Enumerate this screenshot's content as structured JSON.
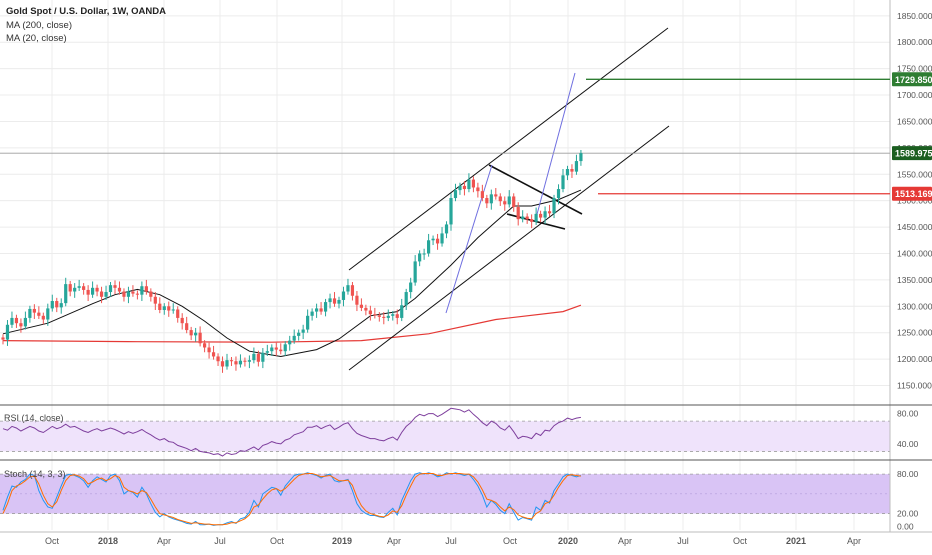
{
  "header": {
    "title": "Gold Spot / U.S. Dollar, 1W, OANDA",
    "ma200_label": "MA (200, close)",
    "ma20_label": "MA (20, close)",
    "rsi_label": "RSI (14, close)",
    "stoch_label": "Stoch (14, 3, 3)"
  },
  "colors": {
    "up": "#26a69a",
    "down": "#ef5350",
    "ma200": "#e53935",
    "ma20": "#111111",
    "trend": "#111111",
    "blue_line": "#6f6fe0",
    "target_line": "#2e7d32",
    "support_line": "#e53935",
    "rsi_line": "#7e3f9d",
    "rsi_band": "#efe3fb",
    "stoch_k": "#2196f3",
    "stoch_d": "#ff6d00",
    "stoch_band": "#d9c4f5",
    "grid": "#ececec"
  },
  "chart_data": [
    {
      "type": "candlestick",
      "title": "Gold Spot / U.S. Dollar, 1W, OANDA",
      "ylim": [
        1115,
        1880
      ],
      "y_ticks": [
        "1850.000",
        "1800.000",
        "1750.000",
        "1700.000",
        "1650.000",
        "1600.000",
        "1550.000",
        "1500.000",
        "1450.000",
        "1400.000",
        "1350.000",
        "1300.000",
        "1250.000",
        "1200.000",
        "1150.000"
      ],
      "x_ticks": [
        "Oct",
        "2018",
        "Apr",
        "Jul",
        "Oct",
        "2019",
        "Apr",
        "Jul",
        "Oct",
        "2020",
        "Apr",
        "Jul",
        "Oct",
        "2021",
        "Apr"
      ],
      "price_labels": [
        {
          "label": "1729.850",
          "value": 1729.85,
          "color": "#2e7d32"
        },
        {
          "label": "1589.975",
          "value": 1589.975,
          "color": "#1b5e20"
        },
        {
          "label": "1513.169",
          "value": 1513.169,
          "color": "#e53935"
        }
      ],
      "close": [
        1237,
        1265,
        1278,
        1268,
        1262,
        1278,
        1295,
        1288,
        1282,
        1275,
        1296,
        1310,
        1298,
        1306,
        1342,
        1328,
        1335,
        1338,
        1331,
        1322,
        1335,
        1328,
        1318,
        1327,
        1340,
        1335,
        1328,
        1318,
        1328,
        1324,
        1322,
        1338,
        1328,
        1318,
        1305,
        1293,
        1300,
        1292,
        1294,
        1278,
        1268,
        1255,
        1245,
        1250,
        1230,
        1222,
        1213,
        1205,
        1196,
        1186,
        1198,
        1196,
        1190,
        1197,
        1195,
        1198,
        1210,
        1195,
        1212,
        1215,
        1222,
        1218,
        1215,
        1228,
        1235,
        1244,
        1250,
        1256,
        1282,
        1290,
        1296,
        1290,
        1308,
        1315,
        1305,
        1312,
        1328,
        1340,
        1320,
        1303,
        1297,
        1292,
        1285,
        1283,
        1280,
        1278,
        1282,
        1285,
        1278,
        1302,
        1327,
        1345,
        1385,
        1400,
        1400,
        1425,
        1428,
        1419,
        1438,
        1455,
        1505,
        1520,
        1528,
        1522,
        1540,
        1525,
        1518,
        1505,
        1495,
        1512,
        1508,
        1499,
        1493,
        1508,
        1488,
        1465,
        1470,
        1465,
        1460,
        1475,
        1468,
        1480,
        1476,
        1505,
        1522,
        1548,
        1560,
        1555,
        1575,
        1590
      ],
      "ohlc_note": "Weekly candles; open of each candle equals the previous close.",
      "series": [
        {
          "name": "MA (200, close)",
          "points": [
            [
              0,
              1235
            ],
            [
              30,
              1233
            ],
            [
              60,
              1232
            ],
            [
              80,
              1235
            ],
            [
              95,
              1248
            ],
            [
              110,
              1275
            ],
            [
              125,
              1290
            ],
            [
              129,
              1302
            ]
          ]
        },
        {
          "name": "MA (20, close)",
          "points": [
            [
              0,
              1248
            ],
            [
              10,
              1268
            ],
            [
              20,
              1305
            ],
            [
              25,
              1322
            ],
            [
              30,
              1332
            ],
            [
              35,
              1322
            ],
            [
              40,
              1300
            ],
            [
              45,
              1272
            ],
            [
              50,
              1240
            ],
            [
              55,
              1215
            ],
            [
              62,
              1205
            ],
            [
              70,
              1218
            ],
            [
              75,
              1238
            ],
            [
              82,
              1282
            ],
            [
              88,
              1290
            ],
            [
              92,
              1315
            ],
            [
              100,
              1378
            ],
            [
              106,
              1430
            ],
            [
              110,
              1460
            ],
            [
              114,
              1490
            ],
            [
              118,
              1490
            ],
            [
              124,
              1502
            ],
            [
              129,
              1520
            ]
          ]
        }
      ]
    },
    {
      "type": "line",
      "title": "RSI (14, close)",
      "ylim": [
        20,
        90
      ],
      "y_ticks": [
        "80.00",
        "40.00"
      ],
      "band": [
        30,
        70
      ],
      "values": [
        60,
        58,
        63,
        61,
        57,
        60,
        63,
        61,
        57,
        55,
        59,
        63,
        60,
        62,
        66,
        62,
        63,
        60,
        57,
        55,
        58,
        60,
        57,
        59,
        61,
        59,
        56,
        53,
        56,
        54,
        56,
        59,
        55,
        52,
        48,
        45,
        47,
        43,
        42,
        38,
        36,
        34,
        31,
        34,
        30,
        29,
        28,
        26,
        27,
        24,
        28,
        26,
        27,
        31,
        30,
        33,
        36,
        32,
        38,
        40,
        43,
        41,
        40,
        45,
        47,
        52,
        54,
        56,
        62,
        62,
        64,
        60,
        63,
        65,
        59,
        62,
        66,
        68,
        60,
        54,
        51,
        49,
        47,
        47,
        45,
        44,
        47,
        49,
        45,
        55,
        63,
        68,
        75,
        79,
        77,
        80,
        80,
        76,
        79,
        83,
        87,
        86,
        85,
        82,
        85,
        79,
        74,
        68,
        64,
        70,
        67,
        61,
        58,
        64,
        56,
        47,
        50,
        49,
        47,
        54,
        51,
        58,
        57,
        64,
        68,
        70,
        74,
        72,
        74,
        75
      ]
    },
    {
      "type": "line",
      "title": "Stoch (14, 3, 3)",
      "ylim": [
        -5,
        100
      ],
      "y_ticks": [
        "80.00",
        "20.00",
        "0.00"
      ],
      "band": [
        20,
        80
      ],
      "series": [
        {
          "name": "%K",
          "values": [
            25,
            45,
            62,
            60,
            68,
            72,
            80,
            78,
            55,
            40,
            30,
            28,
            45,
            62,
            78,
            80,
            78,
            75,
            70,
            60,
            70,
            76,
            72,
            68,
            78,
            80,
            70,
            50,
            55,
            52,
            45,
            60,
            50,
            35,
            22,
            15,
            20,
            15,
            12,
            10,
            8,
            5,
            4,
            8,
            3,
            3,
            4,
            2,
            3,
            3,
            6,
            8,
            5,
            12,
            14,
            22,
            40,
            30,
            50,
            55,
            60,
            58,
            48,
            62,
            70,
            78,
            80,
            80,
            82,
            80,
            78,
            74,
            78,
            80,
            70,
            68,
            70,
            72,
            55,
            35,
            25,
            20,
            17,
            17,
            15,
            14,
            22,
            28,
            18,
            40,
            55,
            70,
            80,
            82,
            80,
            82,
            80,
            76,
            78,
            82,
            80,
            82,
            80,
            78,
            80,
            72,
            62,
            48,
            30,
            40,
            34,
            25,
            20,
            35,
            22,
            10,
            14,
            12,
            10,
            30,
            25,
            40,
            36,
            55,
            65,
            76,
            80,
            78,
            76,
            78
          ]
        },
        {
          "name": "%D",
          "values": [
            20,
            35,
            55,
            62,
            65,
            70,
            76,
            77,
            65,
            48,
            35,
            30,
            38,
            55,
            70,
            78,
            79,
            77,
            73,
            65,
            68,
            72,
            74,
            70,
            73,
            78,
            75,
            60,
            55,
            53,
            50,
            55,
            52,
            42,
            30,
            20,
            18,
            16,
            14,
            11,
            9,
            7,
            5,
            6,
            5,
            4,
            4,
            3,
            3,
            3,
            4,
            6,
            6,
            9,
            12,
            18,
            30,
            33,
            42,
            50,
            56,
            58,
            54,
            58,
            65,
            72,
            78,
            80,
            81,
            81,
            79,
            76,
            77,
            78,
            74,
            70,
            70,
            71,
            63,
            45,
            32,
            24,
            20,
            18,
            16,
            15,
            18,
            24,
            22,
            32,
            48,
            62,
            75,
            80,
            81,
            81,
            81,
            78,
            78,
            80,
            81,
            81,
            81,
            80,
            80,
            76,
            68,
            56,
            42,
            40,
            37,
            30,
            24,
            30,
            26,
            18,
            15,
            13,
            12,
            20,
            24,
            35,
            38,
            48,
            60,
            70,
            78,
            79,
            78,
            77
          ]
        }
      ]
    }
  ]
}
